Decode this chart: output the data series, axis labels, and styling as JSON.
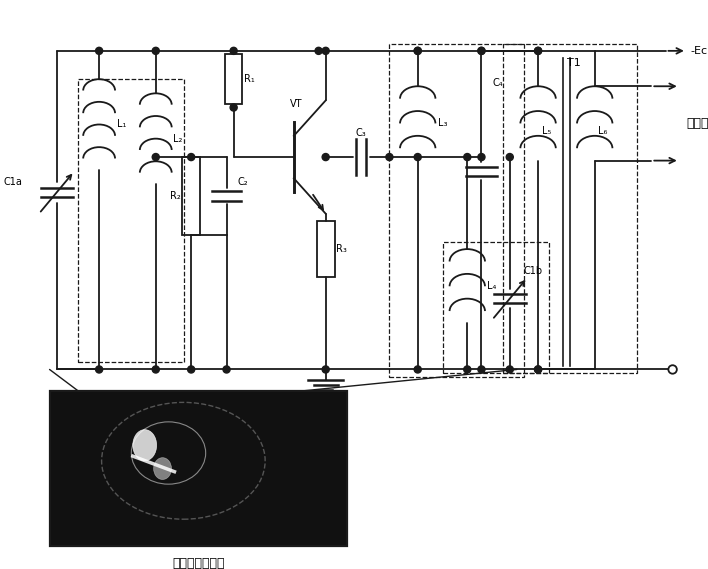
{
  "bg_color": "#ffffff",
  "line_color": "#1a1a1a",
  "line_width": 1.3,
  "dashed_lw": 0.9,
  "labels": {
    "C1a": "C1a",
    "L1": "L₁",
    "L2": "L₂",
    "R1": "R₁",
    "R2": "R₂",
    "C2": "C₂",
    "R3": "R₃",
    "C3": "C₃",
    "VT": "VT",
    "L3": "L₃",
    "C4": "C₄",
    "T1": "T1",
    "L5": "L₅",
    "L6": "L₆",
    "L4": "L₄",
    "C1b": "C1b",
    "neg_Ec": "-Ec",
    "qu_zhong_fang": "去中放",
    "caption": "双联可调电容器"
  },
  "figsize": [
    7.08,
    5.69
  ],
  "dpi": 100
}
